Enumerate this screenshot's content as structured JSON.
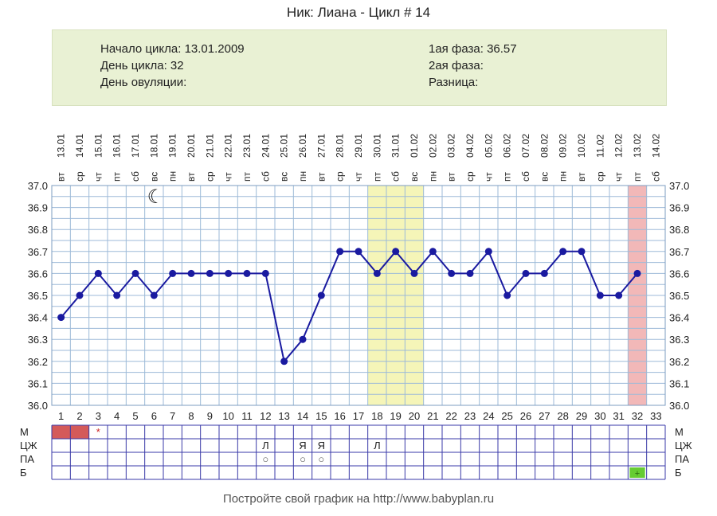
{
  "title": "Ник: Лиана - Цикл # 14",
  "info": {
    "cycle_start_label": "Начало цикла:",
    "cycle_start_value": "13.01.2009",
    "cycle_day_label": "День цикла:",
    "cycle_day_value": "32",
    "ovulation_label": "День овуляции:",
    "ovulation_value": "",
    "phase1_label": "1ая фаза:",
    "phase1_value": "36.57",
    "phase2_label": "2ая фаза:",
    "phase2_value": "",
    "diff_label": "Разница:",
    "diff_value": ""
  },
  "footer": "Постройте свой график на http://www.babyplan.ru",
  "chart_data": {
    "type": "line",
    "days": [
      1,
      2,
      3,
      4,
      5,
      6,
      7,
      8,
      9,
      10,
      11,
      12,
      13,
      14,
      15,
      16,
      17,
      18,
      19,
      20,
      21,
      22,
      23,
      24,
      25,
      26,
      27,
      28,
      29,
      30,
      31,
      32,
      33
    ],
    "dates": [
      "13.01",
      "14.01",
      "15.01",
      "16.01",
      "17.01",
      "18.01",
      "19.01",
      "20.01",
      "21.01",
      "22.01",
      "23.01",
      "24.01",
      "25.01",
      "26.01",
      "27.01",
      "28.01",
      "29.01",
      "30.01",
      "31.01",
      "01.02",
      "02.02",
      "03.02",
      "04.02",
      "05.02",
      "06.02",
      "07.02",
      "08.02",
      "09.02",
      "10.02",
      "11.02",
      "12.02",
      "13.02",
      "14.02"
    ],
    "weekdays": [
      "вт",
      "ср",
      "чт",
      "пт",
      "сб",
      "вс",
      "пн",
      "вт",
      "ср",
      "чт",
      "пт",
      "сб",
      "вс",
      "пн",
      "вт",
      "ср",
      "чт",
      "пт",
      "сб",
      "вс",
      "пн",
      "вт",
      "ср",
      "чт",
      "пт",
      "сб",
      "вс",
      "пн",
      "вт",
      "ср",
      "чт",
      "пт",
      "сб"
    ],
    "temperatures": [
      36.4,
      36.5,
      36.6,
      36.5,
      36.6,
      36.5,
      36.6,
      36.6,
      36.6,
      36.6,
      36.6,
      36.6,
      36.2,
      36.3,
      36.5,
      36.7,
      36.7,
      36.6,
      36.7,
      36.6,
      36.7,
      36.6,
      36.6,
      36.7,
      36.5,
      36.6,
      36.6,
      36.7,
      36.7,
      36.5,
      36.5,
      36.6
    ],
    "ylim": [
      36.0,
      37.0
    ],
    "yticks": [
      "36.0",
      "36.1",
      "36.2",
      "36.3",
      "36.4",
      "36.5",
      "36.6",
      "36.7",
      "36.8",
      "36.9",
      "37.0"
    ],
    "highlight_days_yellow": [
      18,
      19,
      20
    ],
    "highlight_day_pink": [
      32
    ],
    "line_color": "#1a1aa0",
    "yellow_color": "#f5f5b8",
    "pink_color": "#f2b8b8",
    "grid": true,
    "moon_day": 6,
    "rows": [
      {
        "label": "М",
        "entries": [
          {
            "day": 1,
            "type": "fill",
            "color": "#d45a5a"
          },
          {
            "day": 2,
            "type": "fill",
            "color": "#d45a5a"
          },
          {
            "day": 3,
            "type": "mark",
            "text": "*",
            "color": "#cc2222"
          }
        ]
      },
      {
        "label": "ЦЖ",
        "entries": [
          {
            "day": 12,
            "type": "mark",
            "text": "Л",
            "color": "#222222"
          },
          {
            "day": 14,
            "type": "mark",
            "text": "Я",
            "color": "#222222"
          },
          {
            "day": 15,
            "type": "mark",
            "text": "Я",
            "color": "#222222"
          },
          {
            "day": 18,
            "type": "mark",
            "text": "Л",
            "color": "#222222"
          }
        ]
      },
      {
        "label": "ПА",
        "entries": [
          {
            "day": 12,
            "type": "mark",
            "text": "○",
            "color": "#555555"
          },
          {
            "day": 14,
            "type": "mark",
            "text": "○",
            "color": "#555555"
          },
          {
            "day": 15,
            "type": "mark",
            "text": "○",
            "color": "#555555"
          }
        ]
      },
      {
        "label": "Б",
        "entries": [
          {
            "day": 32,
            "type": "test",
            "text": "+",
            "color": "#66cc33"
          }
        ]
      }
    ]
  }
}
